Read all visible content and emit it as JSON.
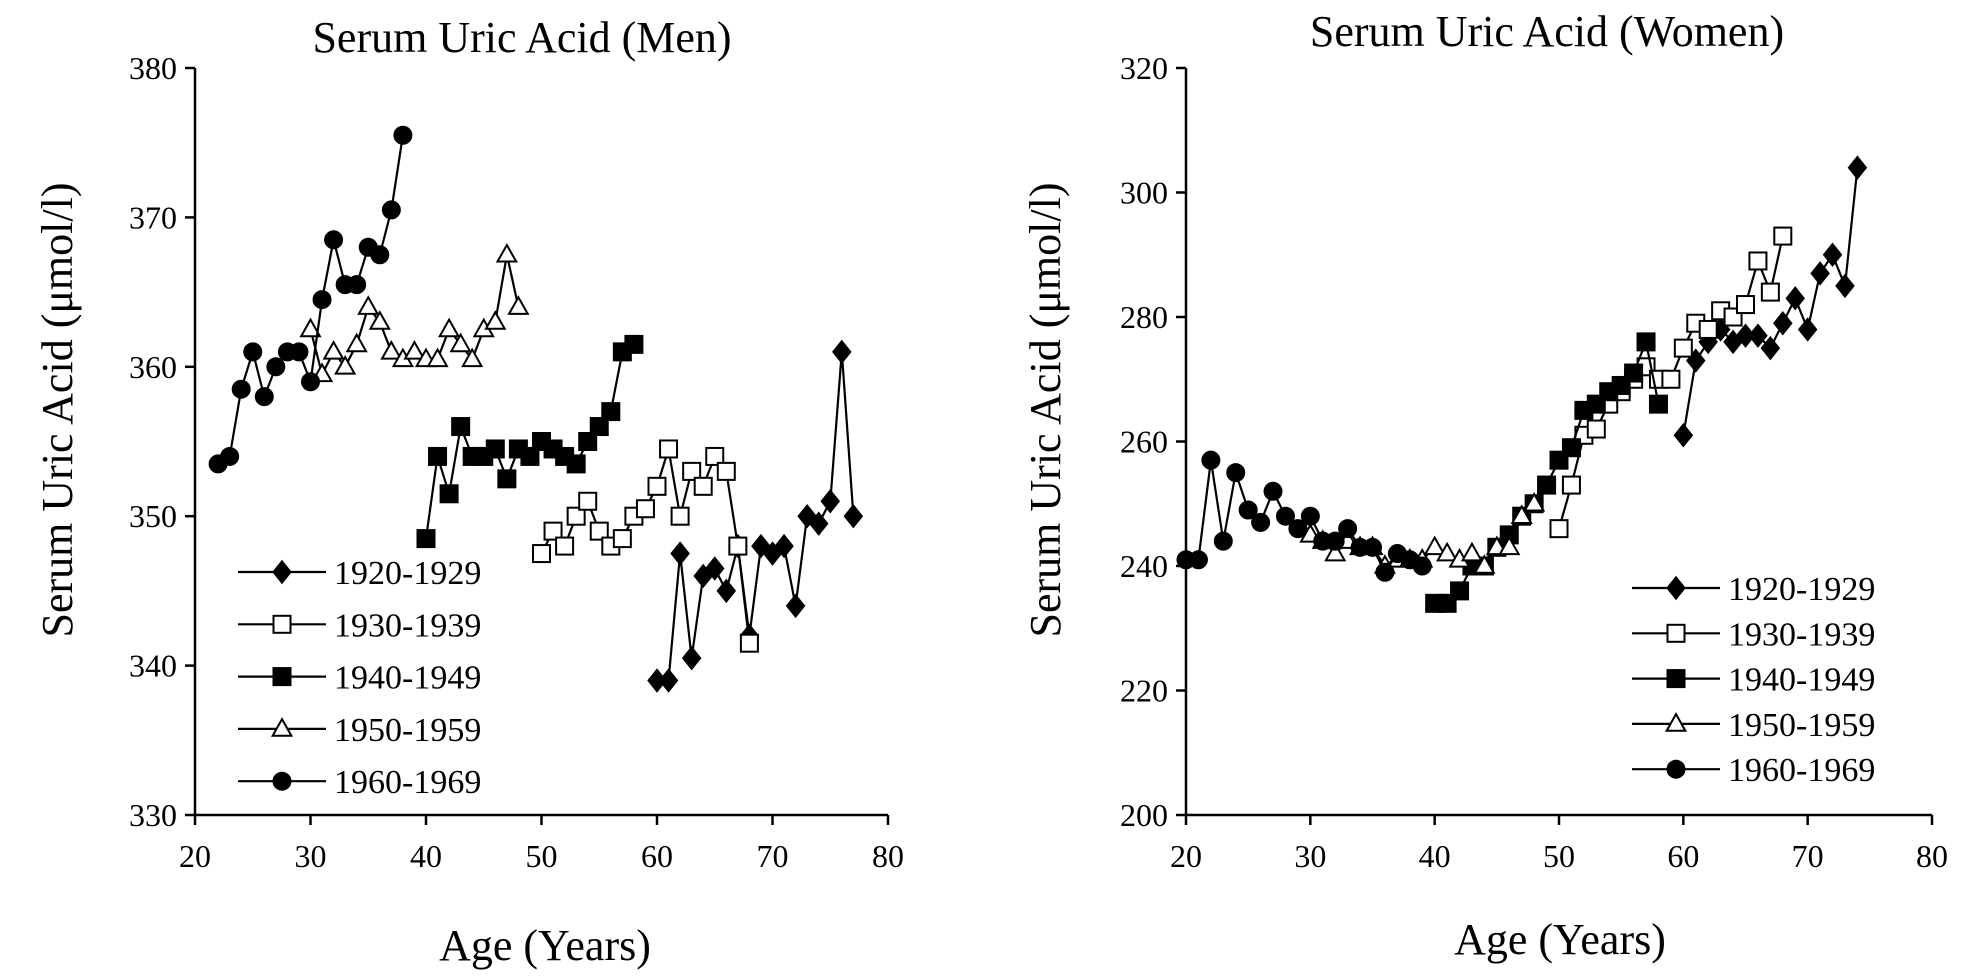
{
  "chart_data": [
    {
      "type": "line",
      "title": "Serum Uric Acid (Men)",
      "xlabel": "Age (Years)",
      "ylabel": "Serum Uric Acid (μmol/l)",
      "xlim": [
        20,
        80
      ],
      "ylim": [
        330,
        380
      ],
      "xticks": [
        "20",
        "30",
        "40",
        "50",
        "60",
        "70",
        "80"
      ],
      "yticks": [
        "330",
        "340",
        "350",
        "360",
        "370",
        "380"
      ],
      "legend_position": "bottom-left",
      "series": [
        {
          "name": "1920-1929",
          "marker": "diamond-filled",
          "x": [
            60,
            61,
            62,
            63,
            64,
            65,
            66,
            67,
            68,
            69,
            70,
            71,
            72,
            73,
            74,
            75,
            76,
            77
          ],
          "y": [
            339,
            339,
            347.5,
            340.5,
            346,
            346.5,
            345,
            348,
            342,
            348,
            347.5,
            348,
            344,
            350,
            349.5,
            351,
            361,
            350
          ]
        },
        {
          "name": "1930-1939",
          "marker": "square-open",
          "x": [
            50,
            51,
            52,
            53,
            54,
            55,
            56,
            57,
            58,
            59,
            60,
            61,
            62,
            63,
            64,
            65,
            66,
            67,
            68
          ],
          "y": [
            347.5,
            349,
            348,
            350,
            351,
            349,
            348,
            348.5,
            350,
            350.5,
            352,
            354.5,
            350,
            353,
            352,
            354,
            353,
            348,
            341.5
          ]
        },
        {
          "name": "1940-1949",
          "marker": "square-filled",
          "x": [
            40,
            41,
            42,
            43,
            44,
            45,
            46,
            47,
            48,
            49,
            50,
            51,
            52,
            53,
            54,
            55,
            56,
            57,
            58
          ],
          "y": [
            348.5,
            354,
            351.5,
            356,
            354,
            354,
            354.5,
            352.5,
            354.5,
            354,
            355,
            354.5,
            354,
            353.5,
            355,
            356,
            357,
            361,
            361.5
          ]
        },
        {
          "name": "1950-1959",
          "marker": "triangle-open",
          "x": [
            30,
            31,
            32,
            33,
            34,
            35,
            36,
            37,
            38,
            39,
            40,
            41,
            42,
            43,
            44,
            45,
            46,
            47,
            48
          ],
          "y": [
            362.5,
            359.5,
            361,
            360,
            361.5,
            364,
            363,
            361,
            360.5,
            361,
            360.5,
            360.5,
            362.5,
            361.5,
            360.5,
            362.5,
            363,
            367.5,
            364
          ]
        },
        {
          "name": "1960-1969",
          "marker": "circle-filled",
          "x": [
            22,
            23,
            24,
            25,
            26,
            27,
            28,
            29,
            30,
            31,
            32,
            33,
            34,
            35,
            36,
            37,
            38
          ],
          "y": [
            353.5,
            354,
            358.5,
            361,
            358,
            360,
            361,
            361,
            359,
            364.5,
            368.5,
            365.5,
            365.5,
            368,
            367.5,
            370.5,
            375.5
          ]
        }
      ]
    },
    {
      "type": "line",
      "title": "Serum Uric Acid (Women)",
      "xlabel": "Age (Years)",
      "ylabel": "Serum Uric Acid (μmol/l)",
      "xlim": [
        20,
        80
      ],
      "ylim": [
        200,
        320
      ],
      "xticks": [
        "20",
        "30",
        "40",
        "50",
        "60",
        "70",
        "80"
      ],
      "yticks": [
        "200",
        "220",
        "240",
        "260",
        "280",
        "300",
        "320"
      ],
      "legend_position": "bottom-right",
      "series": [
        {
          "name": "1920-1929",
          "marker": "diamond-filled",
          "x": [
            60,
            61,
            62,
            63,
            64,
            65,
            66,
            67,
            68,
            69,
            70,
            71,
            72,
            73,
            74
          ],
          "y": [
            261,
            273,
            276,
            278,
            276,
            277,
            277,
            275,
            279,
            283,
            278,
            287,
            290,
            285,
            304
          ]
        },
        {
          "name": "1930-1939",
          "marker": "square-open",
          "x": [
            50,
            51,
            52,
            53,
            54,
            55,
            56,
            57,
            58,
            59,
            60,
            61,
            62,
            63,
            64,
            65,
            66,
            67,
            68
          ],
          "y": [
            246,
            253,
            261,
            262,
            266,
            268,
            270,
            272,
            270,
            270,
            275,
            279,
            278,
            281,
            280,
            282,
            289,
            284,
            293
          ]
        },
        {
          "name": "1940-1949",
          "marker": "square-filled",
          "x": [
            40,
            41,
            42,
            43,
            44,
            45,
            46,
            47,
            48,
            49,
            50,
            51,
            52,
            53,
            54,
            55,
            56,
            57,
            58
          ],
          "y": [
            234,
            234,
            236,
            240,
            240,
            243,
            245,
            248,
            250,
            253,
            257,
            259,
            265,
            266,
            268,
            269,
            271,
            276,
            266
          ]
        },
        {
          "name": "1950-1959",
          "marker": "triangle-open",
          "x": [
            30,
            31,
            32,
            33,
            34,
            35,
            36,
            37,
            38,
            39,
            40,
            41,
            42,
            43,
            44,
            45,
            46,
            47,
            48
          ],
          "y": [
            245,
            244,
            242,
            244,
            243,
            243,
            240,
            241,
            241,
            241,
            243,
            242,
            241,
            242,
            240,
            243,
            243,
            248,
            250
          ]
        },
        {
          "name": "1960-1969",
          "marker": "circle-filled",
          "x": [
            20,
            21,
            22,
            23,
            24,
            25,
            26,
            27,
            28,
            29,
            30,
            31,
            32,
            33,
            34,
            35,
            36,
            37,
            38,
            39
          ],
          "y": [
            241,
            241,
            257,
            244,
            255,
            249,
            247,
            252,
            248,
            246,
            248,
            244,
            244,
            246,
            243,
            243,
            239,
            242,
            241,
            240
          ]
        }
      ]
    }
  ]
}
